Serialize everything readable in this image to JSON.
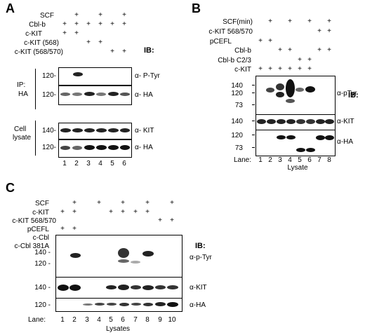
{
  "panelA": {
    "label": "A",
    "rows": [
      "SCF",
      "Cbl-b",
      "c-KIT",
      "c-KIT (568)",
      "c-KIT (568/570)"
    ],
    "ib": "IB:",
    "ip_label": "IP:",
    "ip_sub": "HA",
    "cell_label": "Cell",
    "lysate_label": "lysate",
    "blots": [
      {
        "name": "α- P-Tyr",
        "marker": "120-"
      },
      {
        "name": "α- HA",
        "marker": "120-"
      },
      {
        "name": "α- KIT",
        "marker": "140-"
      },
      {
        "name": "α- HA",
        "marker": "120-"
      }
    ],
    "lanes": [
      "1",
      "2",
      "3",
      "4",
      "5",
      "6"
    ]
  },
  "panelB": {
    "label": "B",
    "rows": [
      "SCF(min)",
      "c-KIT 568/570",
      "pCEFL",
      "Cbl-b",
      "Cbl-b C2/3",
      "c-KIT"
    ],
    "ib": "IB:",
    "blots": [
      {
        "name": "α-pTyr",
        "markers": [
          "140",
          "120",
          "73"
        ]
      },
      {
        "name": "α-KIT",
        "markers": [
          "140"
        ]
      },
      {
        "name": "α-HA",
        "markers": [
          "120",
          "73"
        ]
      }
    ],
    "lane_title": "Lane:",
    "lanes": [
      "1",
      "2",
      "3",
      "4",
      "5",
      "6",
      "7",
      "8"
    ],
    "footer": "Lysate"
  },
  "panelC": {
    "label": "C",
    "rows": [
      "SCF",
      "c-KIT",
      "c-KIT 568/570",
      "pCEFL",
      "c-Cbl",
      "c-Cbl 381A"
    ],
    "ib": "IB:",
    "blots": [
      {
        "name": "α-p-Tyr",
        "markers": [
          "140 -",
          "120 -"
        ]
      },
      {
        "name": "α-KIT",
        "markers": [
          "140 -"
        ]
      },
      {
        "name": "α-HA",
        "markers": [
          "120 -"
        ]
      }
    ],
    "lane_title": "Lane:",
    "lanes": [
      "1",
      "2",
      "3",
      "4",
      "5",
      "6",
      "7",
      "8",
      "9",
      "10"
    ],
    "footer": "Lysates"
  },
  "plus_sign": "+"
}
